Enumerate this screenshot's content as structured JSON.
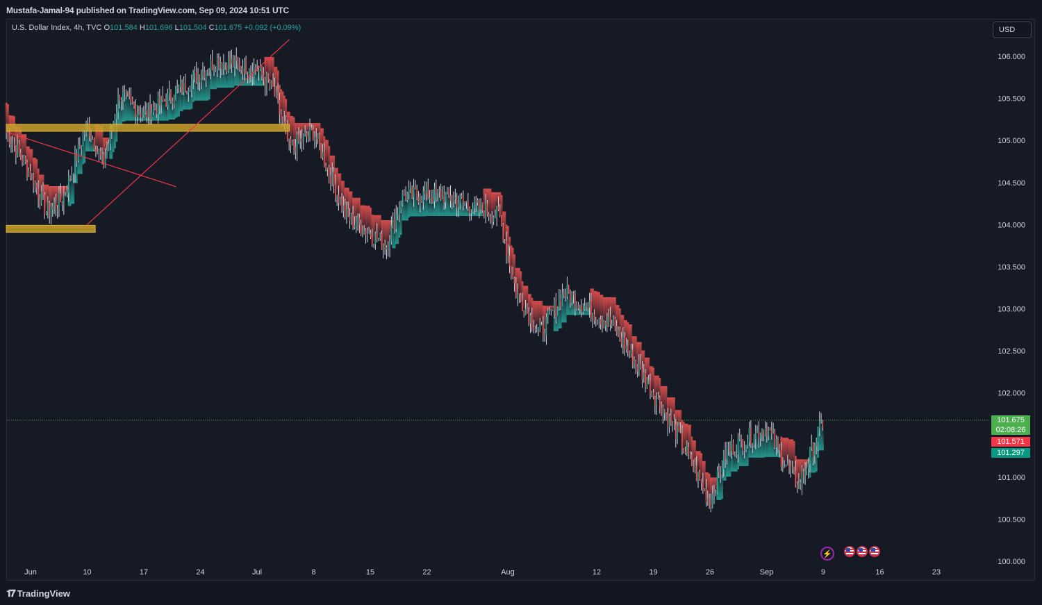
{
  "header": {
    "publisher": "Mustafa-Jamal-94 published on TradingView.com, Sep 09, 2024 10:51 UTC"
  },
  "legend": {
    "symbol": "U.S. Dollar Index, 4h, TVC",
    "o_label": "O",
    "o_value": "101.584",
    "h_label": "H",
    "h_value": "101.696",
    "l_label": "L",
    "l_value": "101.504",
    "c_label": "C",
    "c_value": "101.675",
    "change": "+0.092 (+0.09%)"
  },
  "currency_button": "USD",
  "price_tags": {
    "last": "101.675",
    "countdown": "02:08:26",
    "upper_band": "101.571",
    "lower_band": "101.297"
  },
  "footer": {
    "brand": "TradingView"
  },
  "icons": {
    "logo": "tradingview-logo-icon",
    "event_lightning": "lightning-icon",
    "event_flags": [
      "us-flag-icon",
      "us-flag-icon",
      "us-flag-icon"
    ]
  },
  "colors": {
    "up": "#26a69a",
    "down": "#ef5350",
    "zone": "#c8a12a",
    "last_price_line": "#4caf50",
    "upper_tag": "#f23645",
    "lower_tag": "#089981"
  },
  "chart_data": {
    "type": "candlestick",
    "title": "U.S. Dollar Index, 4h, TVC",
    "y_axis": {
      "ylim": [
        100.0,
        106.2
      ],
      "ticks": [
        "106.000",
        "105.500",
        "105.000",
        "104.500",
        "104.000",
        "103.500",
        "103.000",
        "102.500",
        "102.000",
        "101.000",
        "100.500",
        "100.000"
      ]
    },
    "x_axis": {
      "ticks": [
        "Jun",
        "10",
        "17",
        "24",
        "Jul",
        "8",
        "15",
        "22",
        "Aug",
        "12",
        "19",
        "26",
        "Sep",
        "9",
        "16",
        "23"
      ]
    },
    "last_price": 101.675,
    "approx_close_path": [
      {
        "x": "May 31",
        "y": 105.1
      },
      {
        "x": "Jun 03",
        "y": 104.6
      },
      {
        "x": "Jun 05",
        "y": 104.15
      },
      {
        "x": "Jun 07",
        "y": 104.3
      },
      {
        "x": "Jun 10",
        "y": 105.2
      },
      {
        "x": "Jun 12",
        "y": 104.7
      },
      {
        "x": "Jun 14",
        "y": 105.55
      },
      {
        "x": "Jun 17",
        "y": 105.3
      },
      {
        "x": "Jun 20",
        "y": 105.5
      },
      {
        "x": "Jun 24",
        "y": 105.8
      },
      {
        "x": "Jun 26",
        "y": 105.95
      },
      {
        "x": "Jul 01",
        "y": 105.85
      },
      {
        "x": "Jul 03",
        "y": 105.6
      },
      {
        "x": "Jul 05",
        "y": 104.9
      },
      {
        "x": "Jul 08",
        "y": 105.1
      },
      {
        "x": "Jul 12",
        "y": 104.1
      },
      {
        "x": "Jul 17",
        "y": 103.75
      },
      {
        "x": "Jul 19",
        "y": 104.35
      },
      {
        "x": "Jul 24",
        "y": 104.35
      },
      {
        "x": "Jul 31",
        "y": 104.1
      },
      {
        "x": "Aug 02",
        "y": 103.2
      },
      {
        "x": "Aug 05",
        "y": 102.7
      },
      {
        "x": "Aug 08",
        "y": 103.2
      },
      {
        "x": "Aug 14",
        "y": 102.8
      },
      {
        "x": "Aug 19",
        "y": 102.0
      },
      {
        "x": "Aug 22",
        "y": 101.5
      },
      {
        "x": "Aug 26",
        "y": 100.7
      },
      {
        "x": "Aug 28",
        "y": 101.3
      },
      {
        "x": "Sep 02",
        "y": 101.6
      },
      {
        "x": "Sep 04",
        "y": 101.2
      },
      {
        "x": "Sep 06",
        "y": 100.9
      },
      {
        "x": "Sep 09",
        "y": 101.675
      }
    ],
    "horizontal_zones": [
      {
        "label": "",
        "from": "May 31",
        "to": "Jul 05",
        "y": 105.15
      },
      {
        "label": "",
        "from": "May 31",
        "to": "Jun 11",
        "y": 103.95
      }
    ],
    "trend_lines": [
      {
        "from": {
          "x": "Jun 10",
          "y": 104.0
        },
        "to": {
          "x": "Jul 05",
          "y": 106.2
        }
      },
      {
        "from": {
          "x": "May 31",
          "y": 105.1
        },
        "to": {
          "x": "Jun 21",
          "y": 104.45
        }
      }
    ],
    "grid": false
  }
}
